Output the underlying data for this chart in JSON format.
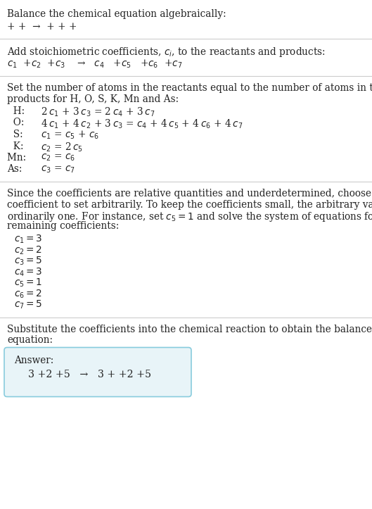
{
  "bg_color": "#ffffff",
  "text_color": "#222222",
  "line_color": "#cccccc",
  "answer_box_color": "#e8f4f8",
  "answer_box_border": "#88ccdd",
  "section1_title": "Balance the chemical equation algebraically:",
  "section1_eq": "+ +  →  + + +",
  "section2_intro": "Add stoichiometric coefficients, $c_i$, to the reactants and products:",
  "section2_eq": "$c_1$  +$c_2$  +$c_3$    →   $c_4$   +$c_5$   +$c_6$  +$c_7$",
  "section3_intro1": "Set the number of atoms in the reactants equal to the number of atoms in the",
  "section3_intro2": "products for H, O, S, K, Mn and As:",
  "section3_rows": [
    [
      "  H: ",
      "2 $c_1$ + 3 $c_3$ = 2 $c_4$ + 3 $c_7$"
    ],
    [
      "  O: ",
      "4 $c_1$ + 4 $c_2$ + 3 $c_3$ = $c_4$ + 4 $c_5$ + 4 $c_6$ + 4 $c_7$"
    ],
    [
      "  S: ",
      "$c_1$ = $c_5$ + $c_6$"
    ],
    [
      "  K: ",
      "$c_2$ = 2 $c_5$"
    ],
    [
      "Mn: ",
      "$c_2$ = $c_6$"
    ],
    [
      "As: ",
      "$c_3$ = $c_7$"
    ]
  ],
  "section4_intro": "Since the coefficients are relative quantities and underdetermined, choose a\ncoefficient to set arbitrarily. To keep the coefficients small, the arbitrary value is\nordinarily one. For instance, set $c_5 = 1$ and solve the system of equations for the\nremaining coefficients:",
  "section4_coeffs": [
    "$c_1 = 3$",
    "$c_2 = 2$",
    "$c_3 = 5$",
    "$c_4 = 3$",
    "$c_5 = 1$",
    "$c_6 = 2$",
    "$c_7 = 5$"
  ],
  "section5_intro1": "Substitute the coefficients into the chemical reaction to obtain the balanced",
  "section5_intro2": "equation:",
  "answer_label": "Answer:",
  "answer_eq": "3 +2 +5   →   3 + +2 +5"
}
